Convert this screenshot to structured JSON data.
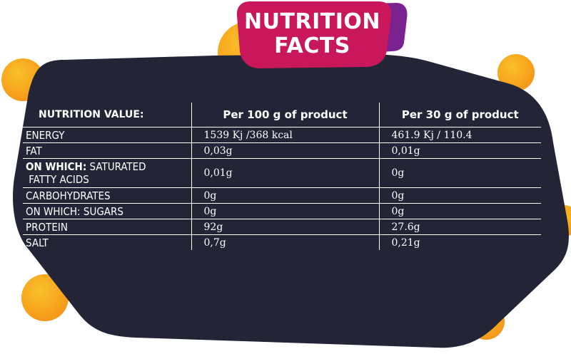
{
  "banner": {
    "line1": "NUTRITION",
    "line2": "FACTS"
  },
  "table": {
    "headers": [
      "NUTRITION VALUE:",
      "Per 100 g of product",
      "Per 30 g of product"
    ],
    "rows": [
      {
        "label": "ENERGY",
        "per100": "1539 Kj /368 kcal",
        "per30": "461.9 Kj / 110.4"
      },
      {
        "label": "FAT",
        "per100": "0,03g",
        "per30": "0,01g"
      },
      {
        "label_bold": "ON WHICH:",
        "label_rest": " SATURATED",
        "label_line2": "FATTY ACIDS",
        "per100": "0,01g",
        "per30": "0g"
      },
      {
        "label": "CARBOHYDRATES",
        "per100": "0g",
        "per30": "0g"
      },
      {
        "label": "ON WHICH: SUGARS",
        "per100": "0g",
        "per30": "0g"
      },
      {
        "label": "PROTEIN",
        "per100": "92g",
        "per30": "27.6g"
      },
      {
        "label": "SALT",
        "per100": "0,7g",
        "per30": "0,21g"
      }
    ]
  },
  "colors": {
    "panel": "#232536",
    "banner": "#c8175a",
    "banner_shadow": "#7a2290",
    "dots": "#f7a21c",
    "text": "#ffffff"
  }
}
